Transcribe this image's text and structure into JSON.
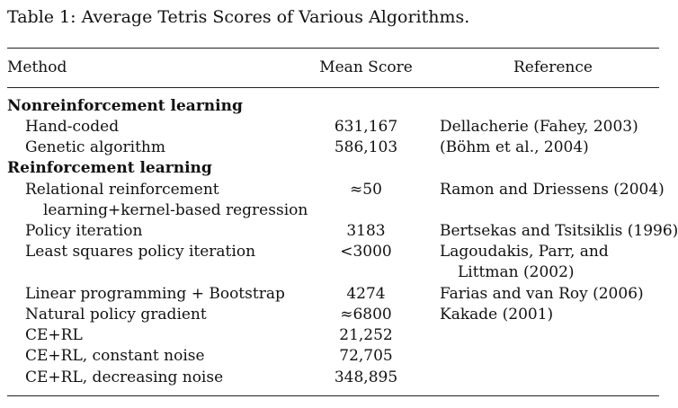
{
  "caption": "Table 1:  Average Tetris Scores of Various Algorithms.",
  "headers": {
    "method": "Method",
    "score": "Mean Score",
    "reference": "Reference"
  },
  "groups": [
    {
      "title": "Nonreinforcement learning",
      "rows": [
        {
          "method": "Hand-coded",
          "score": "631,167",
          "reference": "Dellacherie (Fahey, 2003)"
        },
        {
          "method": "Genetic algorithm",
          "score": "586,103",
          "reference": "(Böhm et al., 2004)"
        }
      ]
    },
    {
      "title": "Reinforcement learning",
      "rows": [
        {
          "method": "Relational reinforcement",
          "method_cont": "learning+kernel-based regression",
          "score": "≈50",
          "reference": "Ramon and Driessens (2004)"
        },
        {
          "method": "Policy iteration",
          "score": "3183",
          "reference": "Bertsekas and Tsitsiklis (1996)"
        },
        {
          "method": "Least squares policy iteration",
          "score": "<3000",
          "reference": "Lagoudakis, Parr, and",
          "reference_cont": "Littman (2002)"
        },
        {
          "method": "Linear programming + Bootstrap",
          "score": "4274",
          "reference": "Farias and van Roy (2006)"
        },
        {
          "method": "Natural policy gradient",
          "score": "≈6800",
          "reference": "Kakade (2001)"
        },
        {
          "method": "CE+RL",
          "score": "21,252",
          "reference": ""
        },
        {
          "method": "CE+RL, constant noise",
          "score": "72,705",
          "reference": ""
        },
        {
          "method": "CE+RL, decreasing noise",
          "score": "348,895",
          "reference": ""
        }
      ]
    }
  ]
}
